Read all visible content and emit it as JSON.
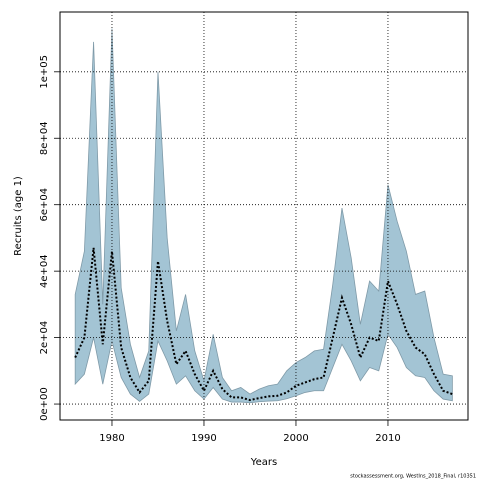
{
  "chart_data": {
    "type": "band-line",
    "xlabel": "Years",
    "ylabel": "Recruits (age 1)",
    "footnote": "stockassessment.org, WestIns_2018_Final, r10351",
    "x": [
      1976,
      1977,
      1978,
      1979,
      1980,
      1981,
      1982,
      1983,
      1984,
      1985,
      1986,
      1987,
      1988,
      1989,
      1990,
      1991,
      1992,
      1993,
      1994,
      1995,
      1996,
      1997,
      1998,
      1999,
      2000,
      2001,
      2002,
      2003,
      2004,
      2005,
      2006,
      2007,
      2008,
      2009,
      2010,
      2011,
      2012,
      2013,
      2014,
      2015,
      2016,
      2017
    ],
    "values": [
      14000,
      20000,
      47000,
      18000,
      46000,
      17000,
      8000,
      3500,
      7000,
      43000,
      25000,
      12000,
      16000,
      9000,
      4000,
      10000,
      4500,
      2000,
      2000,
      1200,
      1800,
      2300,
      2500,
      3500,
      5500,
      6500,
      7500,
      8000,
      20000,
      32000,
      24000,
      14000,
      20000,
      19000,
      37000,
      30000,
      22000,
      17000,
      15000,
      9000,
      4000,
      3000
    ],
    "lower": [
      6000,
      9000,
      20000,
      6000,
      19000,
      8000,
      3000,
      800,
      3000,
      19000,
      13000,
      6000,
      8500,
      4000,
      1500,
      5000,
      1500,
      600,
      600,
      400,
      700,
      900,
      1000,
      1600,
      2500,
      3500,
      4000,
      4000,
      11000,
      18000,
      13000,
      7000,
      11000,
      10000,
      21000,
      17000,
      11000,
      8500,
      8000,
      4000,
      1500,
      1000
    ],
    "upper": [
      33000,
      46000,
      109000,
      30000,
      113000,
      35000,
      18000,
      8000,
      16000,
      100000,
      50000,
      22000,
      33000,
      16000,
      7000,
      21000,
      8000,
      4000,
      5000,
      3000,
      4500,
      5500,
      6000,
      10000,
      12500,
      14000,
      16000,
      16500,
      36000,
      59000,
      44000,
      24000,
      37000,
      34000,
      66000,
      55000,
      46000,
      33000,
      34000,
      20000,
      9000,
      8500
    ],
    "line_color": "#000000",
    "band_color": "#a3c4d4",
    "xlim": [
      1974.35,
      2018.7
    ],
    "ylim": [
      -4800,
      118000
    ],
    "xticks": [
      1980,
      1990,
      2000,
      2010
    ],
    "yticks": [
      {
        "value": 0,
        "label": "0e+00"
      },
      {
        "value": 20000,
        "label": "2e+04"
      },
      {
        "value": 40000,
        "label": "4e+04"
      },
      {
        "value": 60000,
        "label": "6e+04"
      },
      {
        "value": 80000,
        "label": "8e+04"
      },
      {
        "value": 100000,
        "label": "1e+05"
      }
    ],
    "grid": true
  }
}
